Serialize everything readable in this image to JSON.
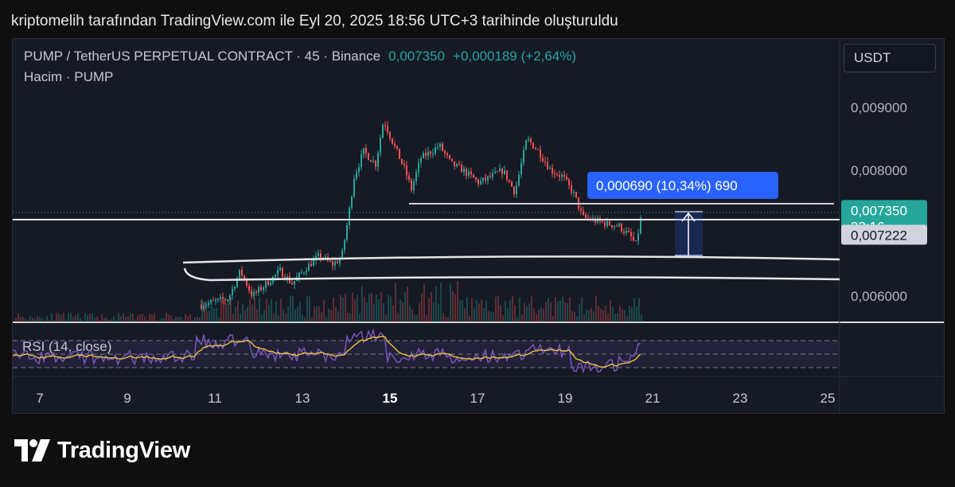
{
  "caption": "kriptomelih tarafından TradingView.com ile Eyl 20, 2025 18:56 UTC+3 tarihinde oluşturuldu",
  "header": {
    "symbol": "PUMP / TetherUS PERPETUAL CONTRACT · 45 · Binance",
    "price": "0,007350",
    "change": "+0,000189 (+2,64%)",
    "volume_label": "Hacim · PUMP",
    "currency": "USDT"
  },
  "measure_label": "0,000690 (10,34%) 690",
  "price_axis": {
    "ticks": [
      "0,009000",
      "0,008000",
      "0,006000"
    ],
    "tick_values": [
      0.009,
      0.008,
      0.006
    ],
    "current_price": "0,007350",
    "current_value": 0.00735,
    "countdown": "33:16",
    "level_label": "0,007222",
    "level_value": 0.007222
  },
  "rsi_label": "RSI (14, close)",
  "time_axis": {
    "ticks": [
      "7",
      "9",
      "11",
      "13",
      "15",
      "17",
      "19",
      "21",
      "23",
      "25"
    ],
    "bold_index": 4
  },
  "brand": "TradingView",
  "colors": {
    "up": "#26a69a",
    "down": "#ef5350",
    "rsi": "#7e57c2",
    "rsi_ma": "#e8c33c",
    "measure": "#2962ff",
    "panel": "#161a25"
  }
}
